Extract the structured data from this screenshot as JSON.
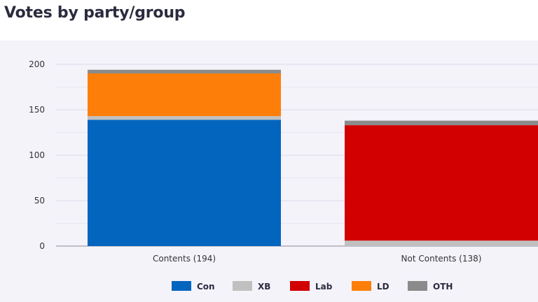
{
  "title": "Votes by party/group",
  "chart_data": {
    "type": "bar",
    "stacked": true,
    "categories": [
      "Contents (194)",
      "Not Contents (138)"
    ],
    "series": [
      {
        "name": "Con",
        "color": "#0465bf",
        "values": [
          139,
          0
        ]
      },
      {
        "name": "XB",
        "color": "#c0c0c0",
        "values": [
          4,
          6
        ]
      },
      {
        "name": "Lab",
        "color": "#d20000",
        "values": [
          0,
          127
        ]
      },
      {
        "name": "LD",
        "color": "#fd7f0a",
        "values": [
          47,
          0
        ]
      },
      {
        "name": "OTH",
        "color": "#8b8b8b",
        "values": [
          4,
          5
        ]
      }
    ],
    "y_ticks": [
      0,
      50,
      100,
      150,
      200
    ],
    "ylim": [
      0,
      200
    ],
    "grid": true,
    "legend_position": "bottom"
  }
}
